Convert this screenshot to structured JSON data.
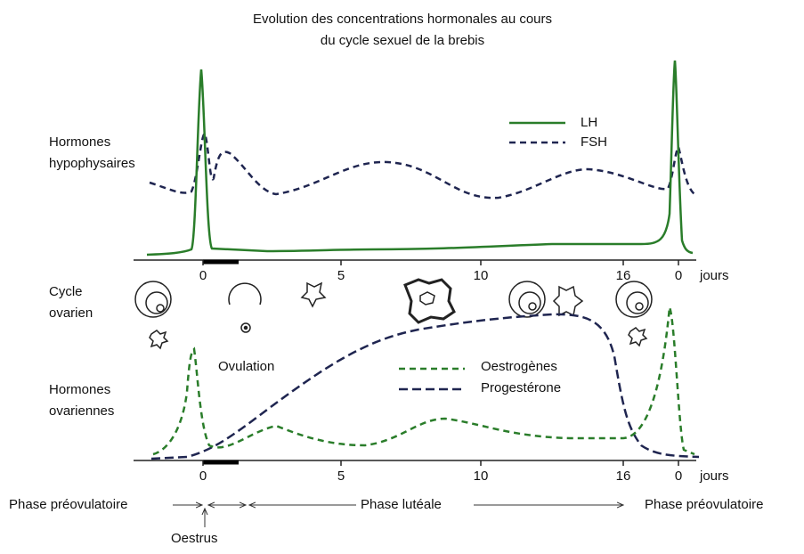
{
  "title": [
    "Evolution des concentrations hormonales au cours",
    "du cycle sexuel de la brebis"
  ],
  "top_panel": {
    "label": [
      "Hormones",
      "hypophysaires"
    ],
    "legend": [
      "LH",
      "FSH"
    ]
  },
  "ovarian_cycle": {
    "label": [
      "Cycle",
      "ovarien"
    ],
    "annotation": "Ovulation"
  },
  "bottom_panel": {
    "label": [
      "Hormones",
      "ovariennes"
    ],
    "legend": [
      "Oestrogènes",
      "Progestérone"
    ]
  },
  "axis": {
    "ticks": [
      "0",
      "5",
      "10",
      "16",
      "0"
    ],
    "unit": "jours"
  },
  "phases": {
    "pre_left": "Phase préovulatoire",
    "luteal": "Phase lutéale",
    "pre_right": "Phase préovulatoire",
    "oestrus": "Oestrus"
  }
}
